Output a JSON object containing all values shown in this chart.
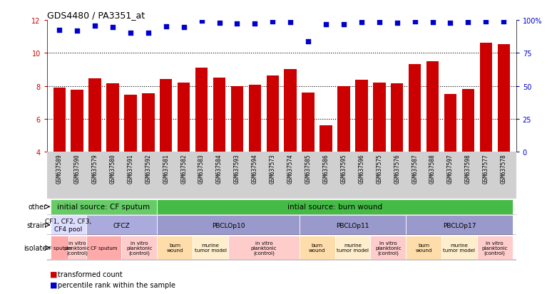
{
  "title": "GDS4480 / PA3351_at",
  "samples": [
    "GSM637589",
    "GSM637590",
    "GSM637579",
    "GSM637580",
    "GSM637591",
    "GSM637592",
    "GSM637581",
    "GSM637582",
    "GSM637583",
    "GSM637584",
    "GSM637593",
    "GSM637594",
    "GSM637573",
    "GSM637574",
    "GSM637585",
    "GSM637586",
    "GSM637595",
    "GSM637596",
    "GSM637575",
    "GSM637576",
    "GSM637587",
    "GSM637588",
    "GSM637597",
    "GSM637598",
    "GSM637577",
    "GSM637578"
  ],
  "bar_values": [
    7.9,
    7.75,
    8.45,
    8.15,
    7.48,
    7.55,
    8.4,
    8.2,
    9.1,
    8.5,
    8.0,
    8.05,
    8.65,
    9.0,
    7.6,
    5.6,
    8.0,
    8.35,
    8.2,
    8.15,
    9.3,
    9.5,
    7.5,
    7.8,
    10.6,
    10.55
  ],
  "dot_values": [
    11.4,
    11.35,
    11.65,
    11.55,
    11.2,
    11.2,
    11.6,
    11.58,
    11.95,
    11.82,
    11.78,
    11.8,
    11.9,
    11.85,
    10.7,
    11.75,
    11.75,
    11.85,
    11.85,
    11.82,
    11.9,
    11.85,
    11.82,
    11.85,
    11.9,
    11.9
  ],
  "ymin": 4,
  "ymax": 12,
  "yticks": [
    4,
    6,
    8,
    10,
    12
  ],
  "right_yticks": [
    0,
    25,
    50,
    75,
    100
  ],
  "bar_color": "#cc0000",
  "dot_color": "#0000cc",
  "bg_color": "#ffffff",
  "other_row": [
    {
      "label": "initial source: CF sputum",
      "start": 0,
      "end": 6,
      "color": "#66cc66"
    },
    {
      "label": "intial source: burn wound",
      "start": 6,
      "end": 26,
      "color": "#44bb44"
    }
  ],
  "strain_row": [
    {
      "label": "CF1, CF2, CF3,\nCF4 pool",
      "start": 0,
      "end": 2,
      "color": "#ddddff"
    },
    {
      "label": "CFCZ",
      "start": 2,
      "end": 6,
      "color": "#aaaadd"
    },
    {
      "label": "PBCLOp10",
      "start": 6,
      "end": 14,
      "color": "#9999cc"
    },
    {
      "label": "PBCLOp11",
      "start": 14,
      "end": 20,
      "color": "#9999cc"
    },
    {
      "label": "PBCLOp17",
      "start": 20,
      "end": 26,
      "color": "#9999cc"
    }
  ],
  "isolate_row": [
    {
      "label": "CF sputum",
      "start": 0,
      "end": 1,
      "color": "#ffaaaa"
    },
    {
      "label": "in vitro\nplanktonic\n(control)",
      "start": 1,
      "end": 2,
      "color": "#ffcccc"
    },
    {
      "label": "CF sputum",
      "start": 2,
      "end": 4,
      "color": "#ffaaaa"
    },
    {
      "label": "in vitro\nplanktonic\n(control)",
      "start": 4,
      "end": 6,
      "color": "#ffcccc"
    },
    {
      "label": "burn\nwound",
      "start": 6,
      "end": 8,
      "color": "#ffddaa"
    },
    {
      "label": "murine\ntumor model",
      "start": 8,
      "end": 10,
      "color": "#ffeecc"
    },
    {
      "label": "in vitro\nplanktonic\n(control)",
      "start": 10,
      "end": 14,
      "color": "#ffcccc"
    },
    {
      "label": "burn\nwound",
      "start": 14,
      "end": 16,
      "color": "#ffddaa"
    },
    {
      "label": "murine\ntumor model",
      "start": 16,
      "end": 18,
      "color": "#ffeecc"
    },
    {
      "label": "in vitro\nplanktonic\n(control)",
      "start": 18,
      "end": 20,
      "color": "#ffcccc"
    },
    {
      "label": "burn\nwound",
      "start": 20,
      "end": 22,
      "color": "#ffddaa"
    },
    {
      "label": "murine\ntumor model",
      "start": 22,
      "end": 24,
      "color": "#ffeecc"
    },
    {
      "label": "in vitro\nplanktonic\n(control)",
      "start": 24,
      "end": 26,
      "color": "#ffcccc"
    }
  ],
  "legend_items": [
    {
      "color": "#cc0000",
      "label": "transformed count"
    },
    {
      "color": "#0000cc",
      "label": "percentile rank within the sample"
    }
  ]
}
